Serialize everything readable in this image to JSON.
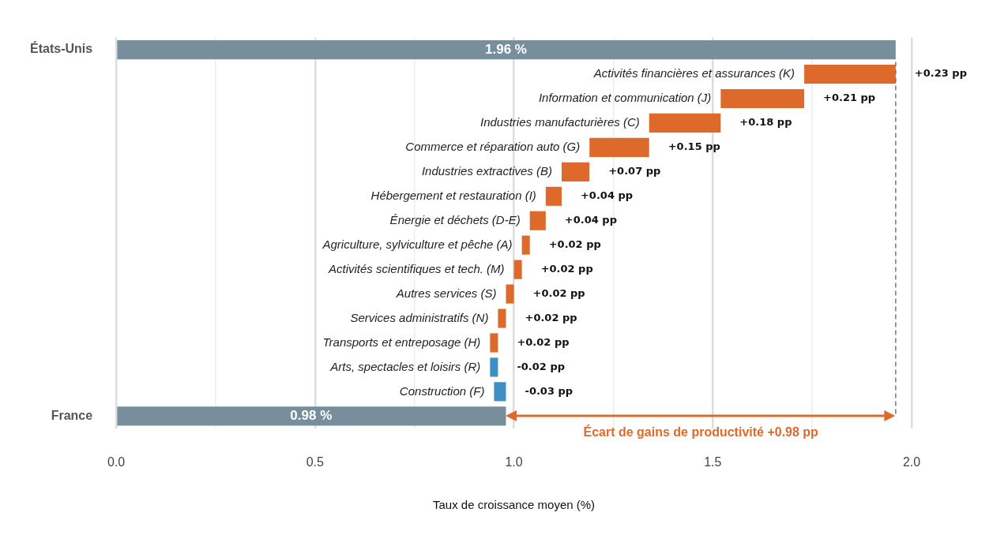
{
  "chart_data": {
    "type": "bar",
    "orientation": "horizontal",
    "xlabel": "Taux de croissance moyen (%)",
    "categories": [
      "États-Unis",
      "Activités financières et assurances (K)",
      "Information et communication (J)",
      "Industries manufacturières (C)",
      "Commerce et réparation auto (G)",
      "Industries extractives (B)",
      "Hébergement et restauration (I)",
      "Énergie et déchets (D-E)",
      "Agriculture, sylviculture et pêche (A)",
      "Activités scientifiques et tech. (M)",
      "Autres services (S)",
      "Services administratifs (N)",
      "Transports et entreposage (H)",
      "Arts, spectacles et loisirs (R)",
      "Construction (F)",
      "France"
    ],
    "values": [
      1.96,
      0.23,
      0.21,
      0.18,
      0.15,
      0.07,
      0.04,
      0.04,
      0.02,
      0.02,
      0.02,
      0.02,
      0.02,
      -0.02,
      -0.03,
      0.98
    ],
    "base": [
      0,
      1.73,
      1.52,
      1.34,
      1.19,
      1.12,
      1.08,
      1.04,
      1.02,
      1.0,
      0.98,
      0.96,
      0.94,
      0.96,
      0.98,
      0
    ],
    "colors": [
      "#778f9c",
      "#dd6a2a",
      "#dd6a2a",
      "#dd6a2a",
      "#dd6a2a",
      "#dd6a2a",
      "#dd6a2a",
      "#dd6a2a",
      "#dd6a2a",
      "#dd6a2a",
      "#dd6a2a",
      "#dd6a2a",
      "#dd6a2a",
      "#3d8fc6",
      "#3d8fc6",
      "#778f9c"
    ],
    "value_labels": [
      "1.96 %",
      "+0.23 pp",
      "+0.21 pp",
      "+0.18 pp",
      "+0.15 pp",
      "+0.07 pp",
      "+0.04 pp",
      "+0.04 pp",
      "+0.02 pp",
      "+0.02 pp",
      "+0.02 pp",
      "+0.02 pp",
      "+0.02 pp",
      "-0.02 pp",
      "-0.03 pp",
      "0.98 %"
    ],
    "xlim": [
      0,
      2.0
    ],
    "xticks": [
      {
        "value": 0,
        "label": "0.0"
      },
      {
        "value": 0.25,
        "label": null
      },
      {
        "value": 0.5,
        "label": "0.5"
      },
      {
        "value": 0.75,
        "label": null
      },
      {
        "value": 1,
        "label": "1.0"
      },
      {
        "value": 1.25,
        "label": null
      },
      {
        "value": 1.5,
        "label": "1.5"
      },
      {
        "value": 1.75,
        "label": null
      },
      {
        "value": 2,
        "label": "2.0"
      }
    ],
    "grid": "x",
    "legend": false,
    "ref_lines": [
      {
        "axis": "x",
        "value": 1.96,
        "color": "#777777",
        "line_style": "dashed"
      }
    ],
    "annotations": [
      "Écart de gains de productivité +0.98 pp"
    ]
  }
}
